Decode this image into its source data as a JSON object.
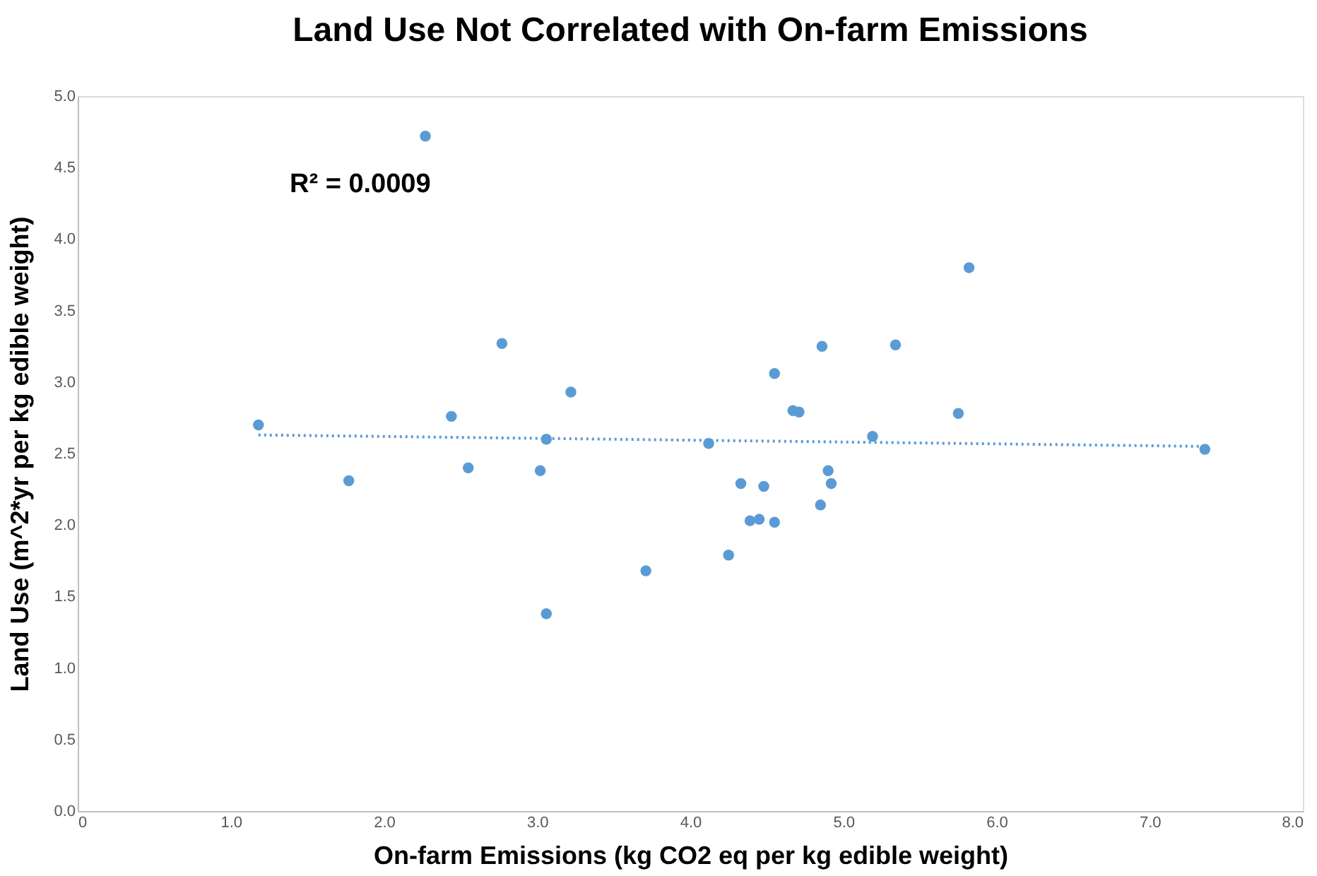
{
  "chart_data": {
    "type": "scatter",
    "title": "Land Use Not Correlated with On-farm Emissions",
    "xlabel": "On-farm Emissions (kg CO2 eq per kg edible weight)",
    "ylabel": "Land Use (m^2*yr per kg edible weight)",
    "annotations": [
      "R² = 0.0009"
    ],
    "xlim": [
      0,
      8
    ],
    "ylim": [
      0,
      5
    ],
    "xticks": [
      0,
      {
        "value": 1,
        "label": "1.0"
      },
      {
        "value": 2,
        "label": "2.0"
      },
      {
        "value": 3,
        "label": "3.0"
      },
      {
        "value": 4,
        "label": "4.0"
      },
      {
        "value": 5,
        "label": "5.0"
      },
      {
        "value": 6,
        "label": "6.0"
      },
      {
        "value": 7,
        "label": "7.0"
      },
      {
        "value": 8,
        "label": "8.0"
      }
    ],
    "yticks": [
      {
        "value": 0,
        "label": "0.0"
      },
      {
        "value": 0.5,
        "label": "0.5"
      },
      {
        "value": 1,
        "label": "1.0"
      },
      {
        "value": 1.5,
        "label": "1.5"
      },
      {
        "value": 2,
        "label": "2.0"
      },
      {
        "value": 2.5,
        "label": "2.5"
      },
      {
        "value": 3,
        "label": "3.0"
      },
      {
        "value": 3.5,
        "label": "3.5"
      },
      {
        "value": 4,
        "label": "4.0"
      },
      {
        "value": 4.5,
        "label": "4.5"
      },
      {
        "value": 5,
        "label": "5.0"
      }
    ],
    "grid": false,
    "series": [
      {
        "color": "#5b9bd5",
        "marker": "circle",
        "x": [
          1.18,
          1.77,
          2.27,
          2.44,
          2.55,
          2.77,
          3.02,
          3.06,
          3.06,
          3.22,
          3.71,
          4.12,
          4.25,
          4.33,
          4.39,
          4.45,
          4.48,
          4.55,
          4.55,
          4.67,
          4.71,
          4.85,
          4.86,
          4.9,
          4.92,
          5.19,
          5.34,
          5.75,
          5.82,
          7.36
        ],
        "values": [
          2.7,
          2.31,
          4.72,
          2.76,
          2.4,
          3.27,
          2.38,
          2.6,
          1.38,
          2.93,
          1.68,
          2.57,
          1.79,
          2.29,
          2.03,
          2.04,
          2.27,
          2.02,
          3.06,
          2.8,
          2.79,
          2.14,
          3.25,
          2.38,
          2.29,
          2.62,
          3.26,
          2.78,
          3.8,
          2.53
        ]
      },
      {
        "type": "line",
        "color": "#5b9bd5",
        "line_style": "dotted",
        "marker": "none",
        "x": [
          1.18,
          7.36
        ],
        "values": [
          2.63,
          2.55
        ]
      }
    ]
  }
}
